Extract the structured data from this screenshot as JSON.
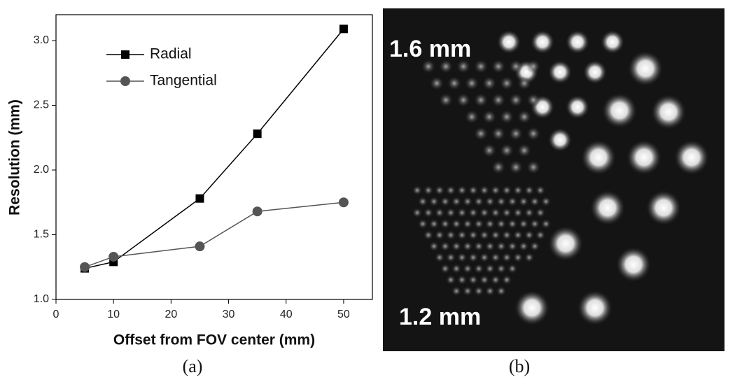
{
  "chart_data": {
    "type": "line",
    "x_label": "Offset from FOV center (mm)",
    "y_label": "Resolution (mm)",
    "x": [
      5,
      10,
      25,
      35,
      50
    ],
    "series": [
      {
        "name": "Radial",
        "color": "#000000",
        "marker": "square",
        "values": [
          1.24,
          1.29,
          1.78,
          2.28,
          3.09
        ]
      },
      {
        "name": "Tangential",
        "color": "#555555",
        "marker": "circle",
        "values": [
          1.25,
          1.33,
          1.41,
          1.68,
          1.75
        ]
      }
    ],
    "xlim": [
      0,
      55
    ],
    "xticks": [
      0,
      10,
      20,
      30,
      40,
      50
    ],
    "ylim": [
      1.0,
      3.2
    ],
    "yticks": [
      {
        "value": 1.0,
        "label": "1.0"
      },
      1.5,
      {
        "value": 2.0,
        "label": "2.0"
      },
      2.5,
      {
        "value": 3.0,
        "label": "3.0"
      }
    ],
    "legend": "upper-left"
  },
  "image": {
    "labels": [
      "1.6 mm",
      "1.2 mm"
    ]
  },
  "panel_labels": [
    "(a)",
    "(b)"
  ]
}
